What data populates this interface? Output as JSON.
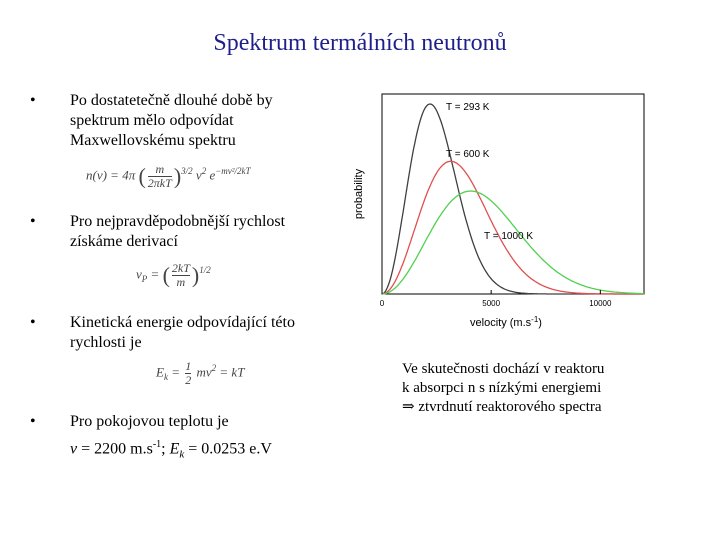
{
  "title": "Spektrum  termálních neutronů",
  "bullets": {
    "b1_line1": "Po dostatetečně dlouhé době by",
    "b1_line2": "spektrum mělo odpovídat",
    "b1_line3": "Maxwellovskému spektru",
    "b2_line1": "Pro nejpravděpodobnější rychlost",
    "b2_line2": "získáme derivací",
    "b3_line1": "Kinetická energie odpovídající této",
    "b3_line2": "rychlosti je",
    "b4_line1": "Pro pokojovou teplotu je",
    "b4_v": "v",
    "b4_eq1": " = 2200 m.s",
    "b4_exp": "-1",
    "b4_sep": ";  ",
    "b4_ek": "E",
    "b4_ek_sub": "k",
    "b4_eq2": " = 0.0253 e.V",
    "bullet_symbol": "•"
  },
  "formulas": {
    "f1_lhs": "n(v) = 4π",
    "f1_num": "m",
    "f1_den": "2πkT",
    "f1_exp": "3/2",
    "f1_tail": "v",
    "f1_tail_exp": "2",
    "f1_e": "e",
    "f1_e_exp": "−mv²/2kT",
    "f2_lhs": "v",
    "f2_lhs_sub": "P",
    "f2_eq": " = ",
    "f2_num": "2kT",
    "f2_den": "m",
    "f2_exp": "1/2",
    "f3_lhs": "E",
    "f3_lhs_sub": "k",
    "f3_eq": " = ",
    "f3_num": "1",
    "f3_den": "2",
    "f3_mid": "mv",
    "f3_mid_exp": "2",
    "f3_rhs": " = kT"
  },
  "note": {
    "line1": "Ve skutečnosti dochází v reaktoru",
    "line2": "k absorpci n s nízkými energiemi",
    "arrow": "⇒",
    "line3": " ztvrdnutí reaktorového spectra"
  },
  "chart_data": {
    "type": "line",
    "xlabel": "velocity (m.s-1)",
    "xlabel_base": "velocity (m.s",
    "xlabel_exp": "-1",
    "xlabel_close": ")",
    "ylabel": "probability",
    "xlim": [
      0,
      12000
    ],
    "x_ticks": [
      0,
      5000,
      10000
    ],
    "x_tick_labels": [
      "0",
      "5000",
      "10000"
    ],
    "y_ticks": "none",
    "grid": false,
    "series": [
      {
        "name": "T = 293 K",
        "color": "#404040",
        "peak_velocity": 2200,
        "T": 293
      },
      {
        "name": "T = 600 K",
        "color": "#e05050",
        "peak_velocity": 3150,
        "T": 600
      },
      {
        "name": "T = 1000 K",
        "color": "#50d050",
        "peak_velocity": 4060,
        "T": 1000
      }
    ]
  }
}
